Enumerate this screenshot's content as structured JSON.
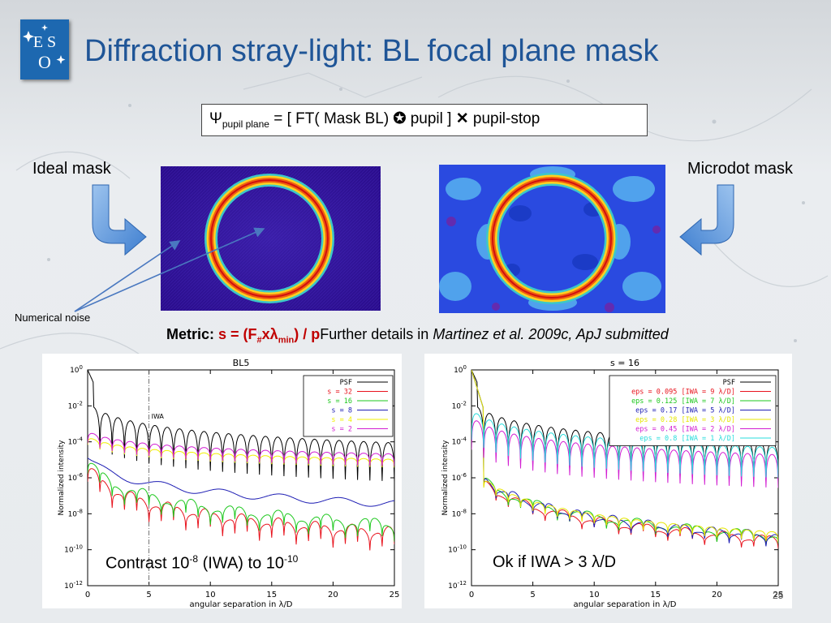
{
  "title": "Diffraction stray-light: BL focal plane mask",
  "formula": {
    "psi": "Ψ",
    "psi_sub": "pupil plane",
    "eq": " = [ FT( Mask BL) ",
    "conv": "✪",
    "mid": " pupil ] ",
    "times": "✕",
    "tail": " pupil-stop"
  },
  "labels": {
    "ideal": "Ideal mask",
    "microdot": "Microdot mask",
    "noise": "Numerical noise"
  },
  "metric": {
    "label": "Metric:",
    "s_pre": " s = (F",
    "s_sub1": "#",
    "s_mid": "xλ",
    "s_sub2": "min",
    "s_post": ") / p",
    "further": "Further details in ",
    "ref": "Martinez et al. 2009c, ApJ submitted"
  },
  "captions": {
    "left_pre": "Contrast 10",
    "left_sup1": "-8",
    "left_mid": " (IWA) to 10",
    "left_sup2": "-10",
    "right": "Ok if IWA > 3 λ/D"
  },
  "page_number": "25",
  "colors": {
    "title": "#1f5597",
    "metric_red": "#c00000",
    "logo": "#1d68b0"
  },
  "chart_data": [
    {
      "type": "line",
      "title": "BL5",
      "xlabel": "angular separation in λ/D",
      "ylabel": "Normalized intensity",
      "xlim": [
        0,
        25
      ],
      "ylim_log10": [
        -12,
        0
      ],
      "x_ticks": [
        "0",
        "5",
        "10",
        "15",
        "20",
        "25"
      ],
      "y_ticks": [
        "10^0",
        "10^-2",
        "10^-4",
        "10^-6",
        "10^-8",
        "10^-10",
        "10^-12"
      ],
      "annotation": {
        "text": "IWA",
        "x": 5
      },
      "legend_position": "top-right",
      "series": [
        {
          "name": "PSF",
          "color": "#000000"
        },
        {
          "name": "s = 32",
          "color": "#e8141e"
        },
        {
          "name": "s = 16",
          "color": "#1ec81e"
        },
        {
          "name": "s = 8",
          "color": "#1e1eb4"
        },
        {
          "name": "s = 4",
          "color": "#f0f000"
        },
        {
          "name": "s = 2",
          "color": "#d21ed2"
        }
      ]
    },
    {
      "type": "line",
      "title": "s = 16",
      "xlabel": "angular separation in λ/D",
      "ylabel": "Normalized intensity",
      "xlim": [
        0,
        25
      ],
      "ylim_log10": [
        -12,
        0
      ],
      "x_ticks": [
        "0",
        "5",
        "10",
        "15",
        "20",
        "25"
      ],
      "y_ticks": [
        "10^0",
        "10^-2",
        "10^-4",
        "10^-6",
        "10^-8",
        "10^-10",
        "10^-12"
      ],
      "legend_position": "top-right",
      "series": [
        {
          "name": "PSF",
          "color": "#000000"
        },
        {
          "name": "eps = 0.095 [IWA = 9 λ/D]",
          "color": "#e8141e"
        },
        {
          "name": "eps = 0.125 [IWA = 7 λ/D]",
          "color": "#1ec81e"
        },
        {
          "name": "eps = 0.17 [IWA = 5 λ/D]",
          "color": "#1e1eb4"
        },
        {
          "name": "eps = 0.28 [IWA = 3 λ/D]",
          "color": "#e6e600"
        },
        {
          "name": "eps = 0.45 [IWA = 2 λ/D]",
          "color": "#d21ed2"
        },
        {
          "name": "eps = 0.8 [IWA = 1 λ/D]",
          "color": "#28dcdc"
        }
      ]
    }
  ]
}
